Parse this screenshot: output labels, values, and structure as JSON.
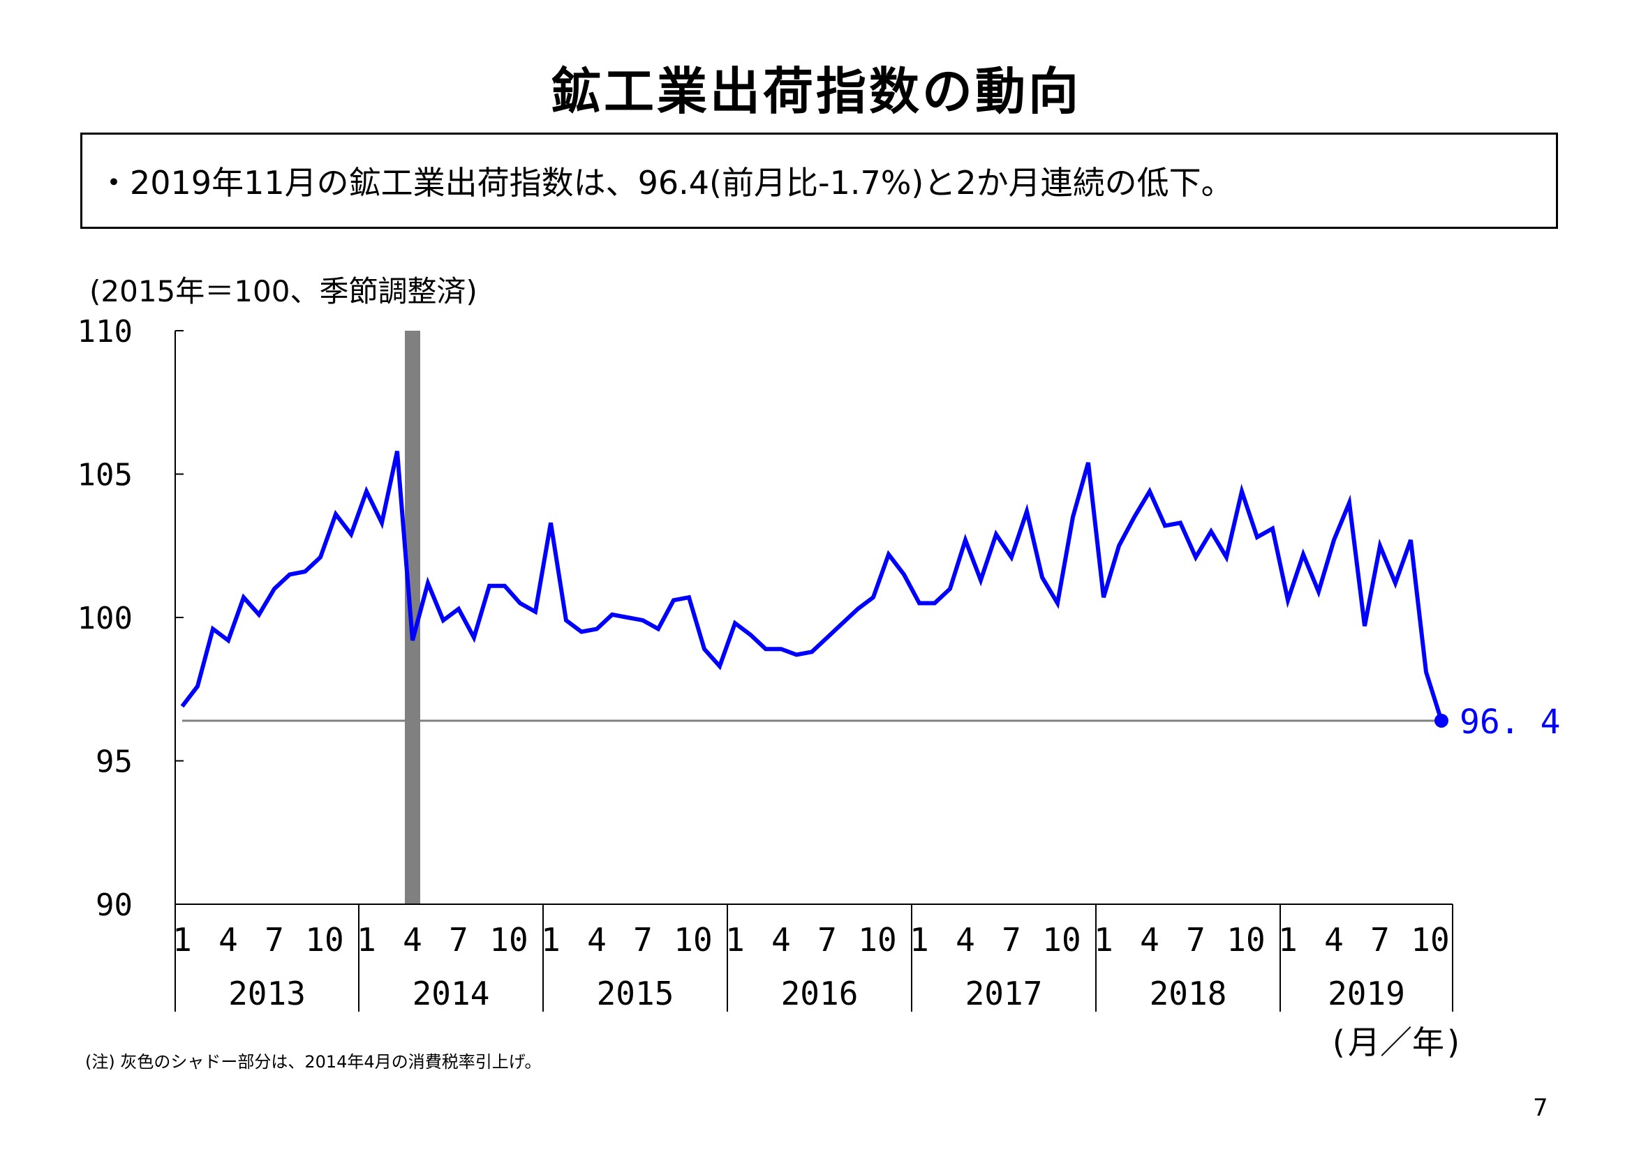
{
  "page": {
    "title": "鉱工業出荷指数の動向",
    "summary": "・2019年11月の鉱工業出荷指数は、96.4(前月比-1.7%)と2か月連続の低下。",
    "unit_label": "(2015年＝100、季節調整済)",
    "note": "(注) 灰色のシャドー部分は、2014年4月の消費税率引上げ。",
    "page_number": "7"
  },
  "colors": {
    "series": "#0000ff",
    "reference_line": "#808080",
    "shade": "#808080",
    "axis": "#000000"
  },
  "chart_data": {
    "type": "line",
    "title": "",
    "xlabel": "(月／年)",
    "ylabel": "",
    "ylim": [
      90,
      110
    ],
    "y_ticks": [
      "90",
      "95",
      "100",
      "105",
      "110"
    ],
    "x_month_labels": [
      "1",
      "4",
      "7",
      "10"
    ],
    "years": [
      "2013",
      "2014",
      "2015",
      "2016",
      "2017",
      "2018",
      "2019"
    ],
    "x_start": "2013-01",
    "x_end": "2019-11",
    "grid": false,
    "shade_period": "2014-04",
    "series": [
      {
        "values": [
          96.9,
          97.6,
          99.6,
          99.2,
          100.7,
          100.1,
          101.0,
          101.5,
          101.6,
          102.1,
          103.6,
          102.9,
          104.4,
          103.3,
          105.8,
          99.2,
          101.2,
          99.9,
          100.3,
          99.3,
          101.1,
          101.1,
          100.5,
          100.2,
          103.3,
          99.9,
          99.5,
          99.6,
          100.1,
          100.0,
          99.9,
          99.6,
          100.6,
          100.7,
          98.9,
          98.3,
          99.8,
          99.4,
          98.9,
          98.9,
          98.7,
          98.8,
          99.3,
          99.8,
          100.3,
          100.7,
          102.2,
          101.5,
          100.5,
          100.5,
          101.0,
          102.7,
          101.3,
          102.9,
          102.1,
          103.7,
          101.4,
          100.5,
          103.5,
          105.4,
          100.7,
          102.5,
          103.5,
          104.4,
          103.2,
          103.3,
          102.1,
          103.0,
          102.1,
          104.4,
          102.8,
          103.1,
          100.6,
          102.2,
          100.9,
          102.7,
          104.0,
          99.7,
          102.5,
          101.2,
          102.7,
          98.1,
          96.4
        ]
      }
    ],
    "latest_label": "96. 4",
    "latest_value": 96.4
  }
}
